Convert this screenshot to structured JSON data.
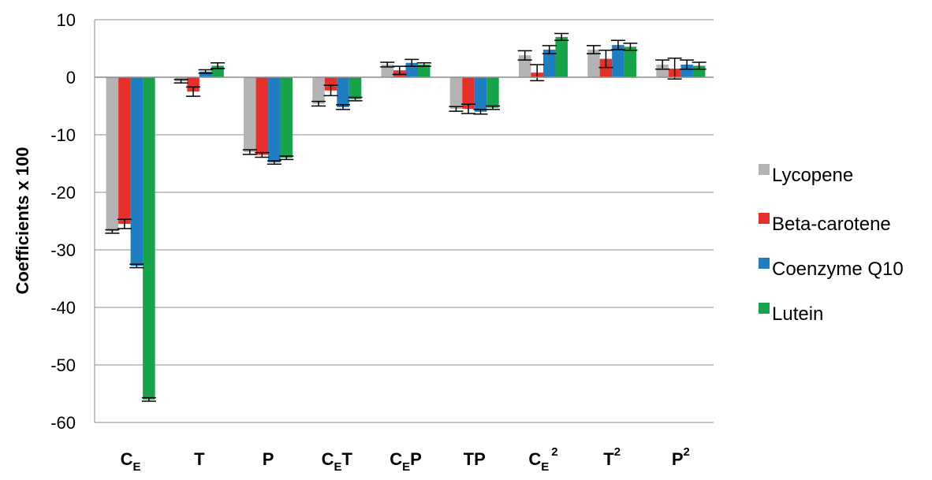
{
  "chart_data": {
    "type": "bar",
    "ylabel": "Coefficients x 100",
    "xlabel": "",
    "ylim": [
      -60,
      10
    ],
    "yticks": [
      10,
      0,
      -10,
      -20,
      -30,
      -40,
      -50,
      -60
    ],
    "grid": true,
    "legend_position": "right",
    "categories": [
      {
        "base": "C",
        "sub": "E",
        "suffix": "",
        "sup": ""
      },
      {
        "base": "T",
        "sub": "",
        "suffix": "",
        "sup": ""
      },
      {
        "base": "P",
        "sub": "",
        "suffix": "",
        "sup": ""
      },
      {
        "base": "C",
        "sub": "E",
        "suffix": "T",
        "sup": ""
      },
      {
        "base": "C",
        "sub": "E",
        "suffix": "P",
        "sup": ""
      },
      {
        "base": "TP",
        "sub": "",
        "suffix": "",
        "sup": ""
      },
      {
        "base": "C",
        "sub": "E",
        "suffix": "",
        "sup": "2"
      },
      {
        "base": "T",
        "sub": "",
        "suffix": "",
        "sup": "2"
      },
      {
        "base": "P",
        "sub": "",
        "suffix": "",
        "sup": "2"
      }
    ],
    "series": [
      {
        "name": "Lycopene",
        "color": "#b3b3b3",
        "values": [
          -26.8,
          -0.7,
          -13.0,
          -4.6,
          2.2,
          -5.5,
          3.8,
          4.8,
          2.2
        ],
        "errors": [
          0.3,
          0.3,
          0.4,
          0.4,
          0.4,
          0.4,
          0.8,
          0.7,
          0.8
        ]
      },
      {
        "name": "Beta-carotene",
        "color": "#e8302a",
        "values": [
          -25.5,
          -2.5,
          -13.5,
          -2.3,
          1.2,
          -5.5,
          0.8,
          3.2,
          1.5
        ],
        "errors": [
          0.8,
          0.8,
          0.4,
          0.9,
          0.7,
          0.8,
          1.4,
          1.5,
          1.8
        ]
      },
      {
        "name": "Coenzyme Q10",
        "color": "#1f7ec2",
        "values": [
          -32.8,
          1.0,
          -14.8,
          -5.2,
          2.5,
          -6.0,
          4.8,
          5.6,
          2.2
        ],
        "errors": [
          0.3,
          0.3,
          0.3,
          0.4,
          0.6,
          0.4,
          0.7,
          0.8,
          0.8
        ]
      },
      {
        "name": "Lutein",
        "color": "#17a34a",
        "values": [
          -56.0,
          2.0,
          -14.0,
          -3.8,
          2.2,
          -5.3,
          7.0,
          5.3,
          2.0
        ],
        "errors": [
          0.3,
          0.5,
          0.3,
          0.3,
          0.3,
          0.3,
          0.6,
          0.6,
          0.6
        ]
      }
    ]
  }
}
